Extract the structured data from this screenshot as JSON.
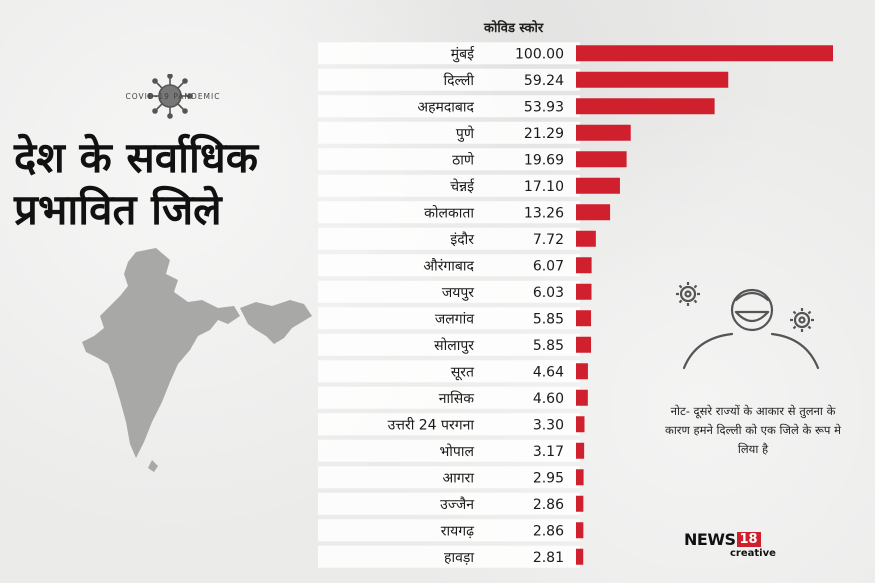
{
  "title_line1": "देश के सर्वाधिक",
  "title_line2": "प्रभावित जिले",
  "badge_text": "COVID-19 PANDEMIC",
  "note": "नोट- दूसरे राज्यों के आकार से तुलना के कारण हमने दिल्ली को एक जिले के रूप मे लिया है",
  "logo": {
    "main": "NEWS",
    "num": "18",
    "sub": "creative"
  },
  "colors": {
    "bar": "#d0202e",
    "background": "#ebebea"
  },
  "chart_data": {
    "type": "bar",
    "orientation": "horizontal",
    "title": "",
    "value_header": "कोविड स्कोर",
    "categories": [
      "मुंबई",
      "दिल्ली",
      "अहमदाबाद",
      "पुणे",
      "ठाणे",
      "चेन्नई",
      "कोलकाता",
      "इंदौर",
      "औरंगाबाद",
      "जयपुर",
      "जलगांव",
      "सोलापुर",
      "सूरत",
      "नासिक",
      "उत्तरी 24 परगना",
      "भोपाल",
      "आगरा",
      "उज्जैन",
      "रायगढ़",
      "हावड़ा"
    ],
    "values": [
      100.0,
      59.24,
      53.93,
      21.29,
      19.69,
      17.1,
      13.26,
      7.72,
      6.07,
      6.03,
      5.85,
      5.85,
      4.64,
      4.6,
      3.3,
      3.17,
      2.95,
      2.86,
      2.86,
      2.81
    ],
    "value_labels": [
      "100.00",
      "59.24",
      "53.93",
      "21.29",
      "19.69",
      "17.10",
      "13.26",
      "7.72",
      "6.07",
      "6.03",
      "5.85",
      "5.85",
      "4.64",
      "4.60",
      "3.30",
      "3.17",
      "2.95",
      "2.86",
      "2.86",
      "2.81"
    ],
    "xlim": [
      0,
      100
    ],
    "grid": false,
    "legend": "none"
  }
}
